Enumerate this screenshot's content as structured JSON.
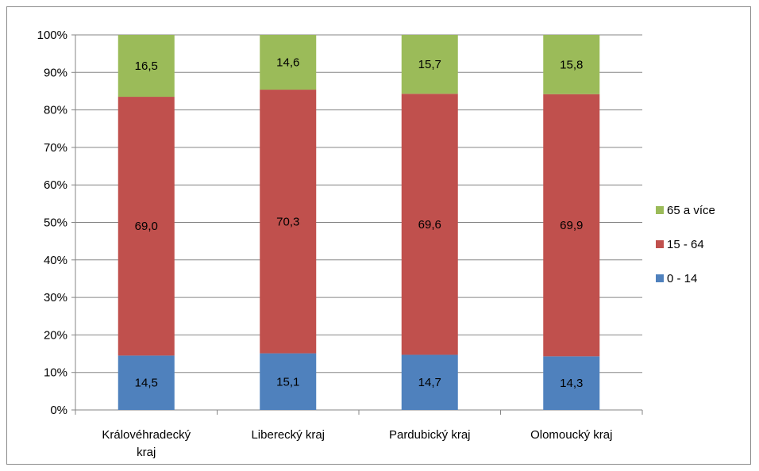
{
  "chart_data": {
    "type": "bar",
    "stacked": true,
    "normalized": true,
    "categories": [
      "Královéhradecký kraj",
      "Liberecký kraj",
      "Pardubický kraj",
      "Olomoucký kraj"
    ],
    "category_lines": [
      [
        "Královéhradecký",
        "kraj"
      ],
      [
        "Liberecký kraj"
      ],
      [
        "Pardubický kraj"
      ],
      [
        "Olomoucký kraj"
      ]
    ],
    "series": [
      {
        "name": "0 - 14",
        "color": "#4f81bd",
        "values": [
          14.5,
          15.1,
          14.7,
          14.3
        ],
        "labels": [
          "14,5",
          "15,1",
          "14,7",
          "14,3"
        ]
      },
      {
        "name": "15 - 64",
        "color": "#c0504d",
        "values": [
          69.0,
          70.3,
          69.6,
          69.9
        ],
        "labels": [
          "69,0",
          "70,3",
          "69,6",
          "69,9"
        ]
      },
      {
        "name": "65 a více",
        "color": "#9bbb59",
        "values": [
          16.5,
          14.6,
          15.7,
          15.8
        ],
        "labels": [
          "16,5",
          "14,6",
          "15,7",
          "15,8"
        ]
      }
    ],
    "y_ticks": [
      "0%",
      "10%",
      "20%",
      "30%",
      "40%",
      "50%",
      "60%",
      "70%",
      "80%",
      "90%",
      "100%"
    ],
    "ylim": [
      0,
      100
    ],
    "grid": true,
    "legend_position": "right",
    "legend_order": [
      "65 a více",
      "15 - 64",
      "0 - 14"
    ]
  }
}
